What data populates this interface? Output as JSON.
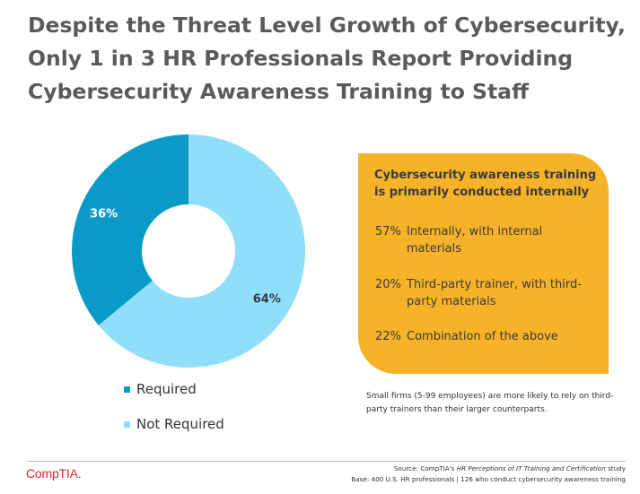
{
  "title": "Despite the Threat Level Growth of Cybersecurity, Only 1 in 3 HR Professionals Report Providing Cybersecurity Awareness Training to Staff",
  "chart_data": {
    "type": "pie",
    "donut": true,
    "categories": [
      "Required",
      "Not Required"
    ],
    "values": [
      36,
      64
    ],
    "unit": "%",
    "data_labels": [
      "36%",
      "64%"
    ],
    "colors": [
      "#0a9ac8",
      "#8fdffb"
    ],
    "legend_position": "bottom-left"
  },
  "legend": {
    "items": [
      {
        "label": "Required",
        "color": "#0a9ac8"
      },
      {
        "label": "Not Required",
        "color": "#8fdffb"
      }
    ]
  },
  "card": {
    "color": "#f7b328",
    "heading": "Cybersecurity awareness training is primarily conducted internally",
    "items": [
      {
        "pct": "57%",
        "text": "Internally, with internal materials"
      },
      {
        "pct": "20%",
        "text": "Third-party trainer, with third-party materials"
      },
      {
        "pct": "22%",
        "text": "Combination of the above"
      }
    ]
  },
  "note": "Small firms (5-99 employees) are more likely to rely on third-party trainers than their larger counterparts.",
  "footer": {
    "logo": "CompTIA.",
    "source_prefix": "Source: CompTIA's ",
    "source_title": "HR Perceptions of IT Training and Certification",
    "source_suffix": " study",
    "base": "Base: 400 U.S. HR professionals | 126 who conduct cybersecurity awareness training"
  }
}
